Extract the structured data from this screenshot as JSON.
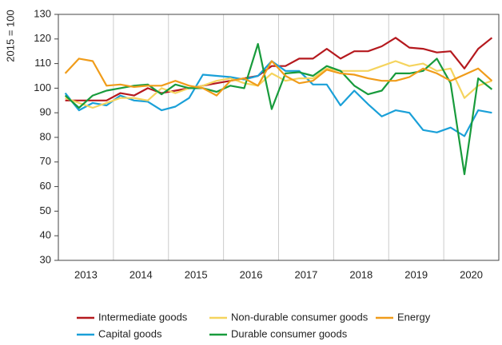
{
  "chart_data": {
    "type": "line",
    "y_label": "2015 = 100",
    "categories": [
      "2013",
      null,
      null,
      null,
      "2014",
      null,
      null,
      null,
      "2015",
      null,
      null,
      null,
      "2016",
      null,
      null,
      null,
      "2017",
      null,
      null,
      null,
      "2018",
      null,
      null,
      null,
      "2019",
      null,
      null,
      null,
      "2020",
      null,
      null,
      null
    ],
    "series": [
      {
        "name": "Intermediate goods",
        "color": "#b5191e",
        "values": [
          95,
          95,
          95,
          95,
          98,
          97,
          100,
          98,
          99,
          100,
          101,
          102,
          103,
          104,
          105,
          109,
          109,
          112,
          112,
          116,
          112,
          115,
          115,
          117,
          120.5,
          116.5,
          116,
          114.5,
          115,
          108,
          116,
          120.5
        ]
      },
      {
        "name": "Capital goods",
        "color": "#1aa0d8",
        "values": [
          98,
          91,
          94,
          93,
          97,
          95,
          94.5,
          91,
          92.5,
          96,
          105.5,
          105,
          104.5,
          103.5,
          105,
          111,
          107,
          107,
          101.5,
          101.5,
          93,
          99,
          93.5,
          88.5,
          91,
          90,
          83,
          82,
          84,
          80.5,
          91,
          90
        ]
      },
      {
        "name": "Non-durable consumer goods",
        "color": "#f5d45e",
        "values": [
          96,
          94,
          92,
          94,
          96,
          96,
          95,
          100,
          98,
          100,
          101,
          103,
          104,
          102,
          101,
          106,
          103,
          104,
          104,
          108,
          107,
          107,
          107,
          109,
          111,
          109,
          110,
          107,
          108,
          96,
          101,
          103
        ]
      },
      {
        "name": "Durable consumer goods",
        "color": "#189b3c",
        "values": [
          97,
          92,
          97,
          99,
          100,
          101,
          101.5,
          97.5,
          101.5,
          100,
          100,
          98.5,
          101,
          100,
          118,
          91.5,
          106,
          106.5,
          105,
          109,
          107,
          101,
          97.5,
          99,
          106,
          106,
          107,
          112,
          102,
          65,
          104,
          99.5
        ]
      },
      {
        "name": "Energy",
        "color": "#f09c1a",
        "values": [
          106,
          112,
          111,
          101,
          101.5,
          100.5,
          101,
          101,
          103,
          101,
          100,
          97,
          103,
          104,
          101,
          111,
          105,
          102,
          103,
          107.5,
          106,
          105.5,
          104,
          103,
          103,
          104.5,
          108,
          106,
          103,
          105.5,
          108,
          103
        ]
      }
    ],
    "ylim": [
      30,
      130
    ],
    "yticks": [
      30,
      40,
      50,
      60,
      70,
      80,
      90,
      100,
      110,
      120,
      130
    ]
  }
}
